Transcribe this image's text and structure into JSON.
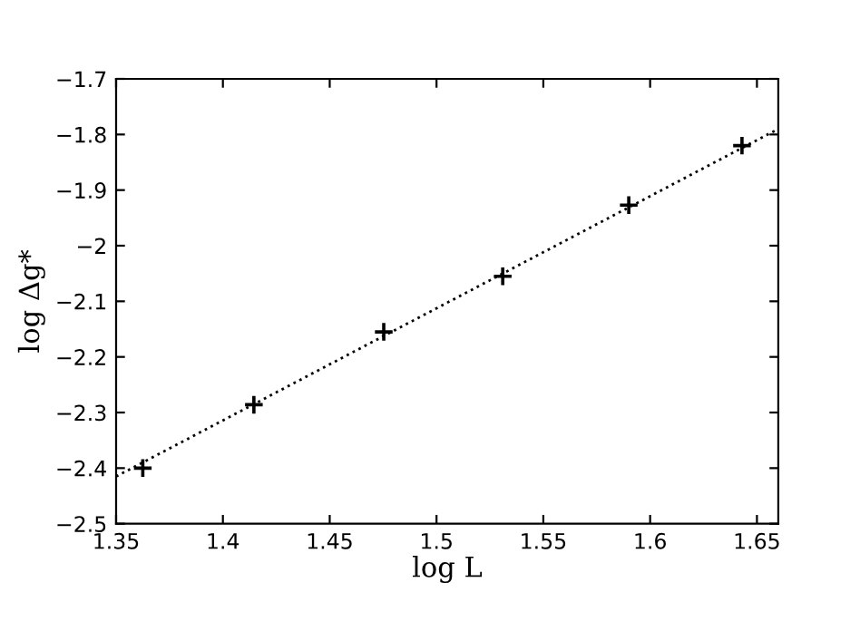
{
  "chart_data": {
    "type": "scatter",
    "xlabel": "log L",
    "ylabel": "log Δg*",
    "xlim": [
      1.35,
      1.66
    ],
    "ylim": [
      -2.5,
      -1.7
    ],
    "xticks": [
      1.35,
      1.4,
      1.45,
      1.5,
      1.55,
      1.6,
      1.65
    ],
    "yticks": [
      -2.5,
      -2.4,
      -2.3,
      -2.2,
      -2.1,
      -2,
      -1.9,
      -1.8,
      -1.7
    ],
    "grid": false,
    "legend": false,
    "series": [
      {
        "marker": "cross",
        "color": "#000000",
        "x": [
          1.3625,
          1.4145,
          1.4753,
          1.531,
          1.59,
          1.643
        ],
        "values": [
          -2.4,
          -2.286,
          -2.155,
          -2.055,
          -1.927,
          -1.82
        ]
      },
      {
        "type": "line",
        "line_style": "dotted",
        "marker": "none",
        "color": "#000000",
        "x": [
          1.35,
          1.66
        ],
        "values": [
          -2.415,
          -1.79
        ]
      }
    ]
  }
}
